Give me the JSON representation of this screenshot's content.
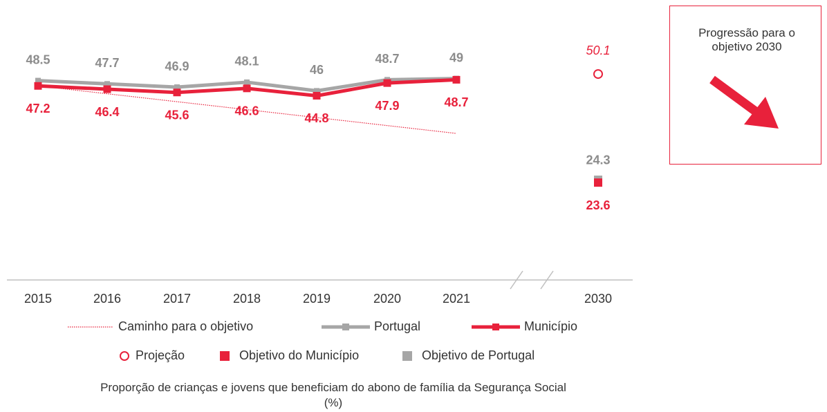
{
  "chart_data": {
    "type": "line",
    "categories": [
      "2015",
      "2016",
      "2017",
      "2018",
      "2019",
      "2020",
      "2021",
      "2030"
    ],
    "series": [
      {
        "name": "Portugal",
        "color": "#a6a6a6",
        "values": [
          48.5,
          47.7,
          46.9,
          48.1,
          46.0,
          48.7,
          49.0,
          null
        ]
      },
      {
        "name": "Município",
        "color": "#e8213b",
        "values": [
          47.2,
          46.4,
          45.6,
          46.6,
          44.8,
          47.9,
          48.7,
          null
        ]
      }
    ],
    "path": {
      "name": "Caminho para o objetivo",
      "color": "#e8213b",
      "x": [
        "2015",
        "2021"
      ],
      "values": [
        47.2,
        35.6
      ]
    },
    "projection": {
      "name": "Projeção",
      "color": "#e8213b",
      "x": "2030",
      "value": 50.1
    },
    "targets": [
      {
        "name": "Objetivo do Município",
        "color": "#e8213b",
        "x": "2030",
        "value": 23.6
      },
      {
        "name": "Objetivo de Portugal",
        "color": "#a6a6a6",
        "x": "2030",
        "value": 24.3
      }
    ],
    "ylim": [
      0,
      68
    ],
    "box_title": "Progressão para o objetivo 2030",
    "caption": "Proporção de crianças e jovens que beneficiam do abono de família da Segurança Social (%)"
  }
}
